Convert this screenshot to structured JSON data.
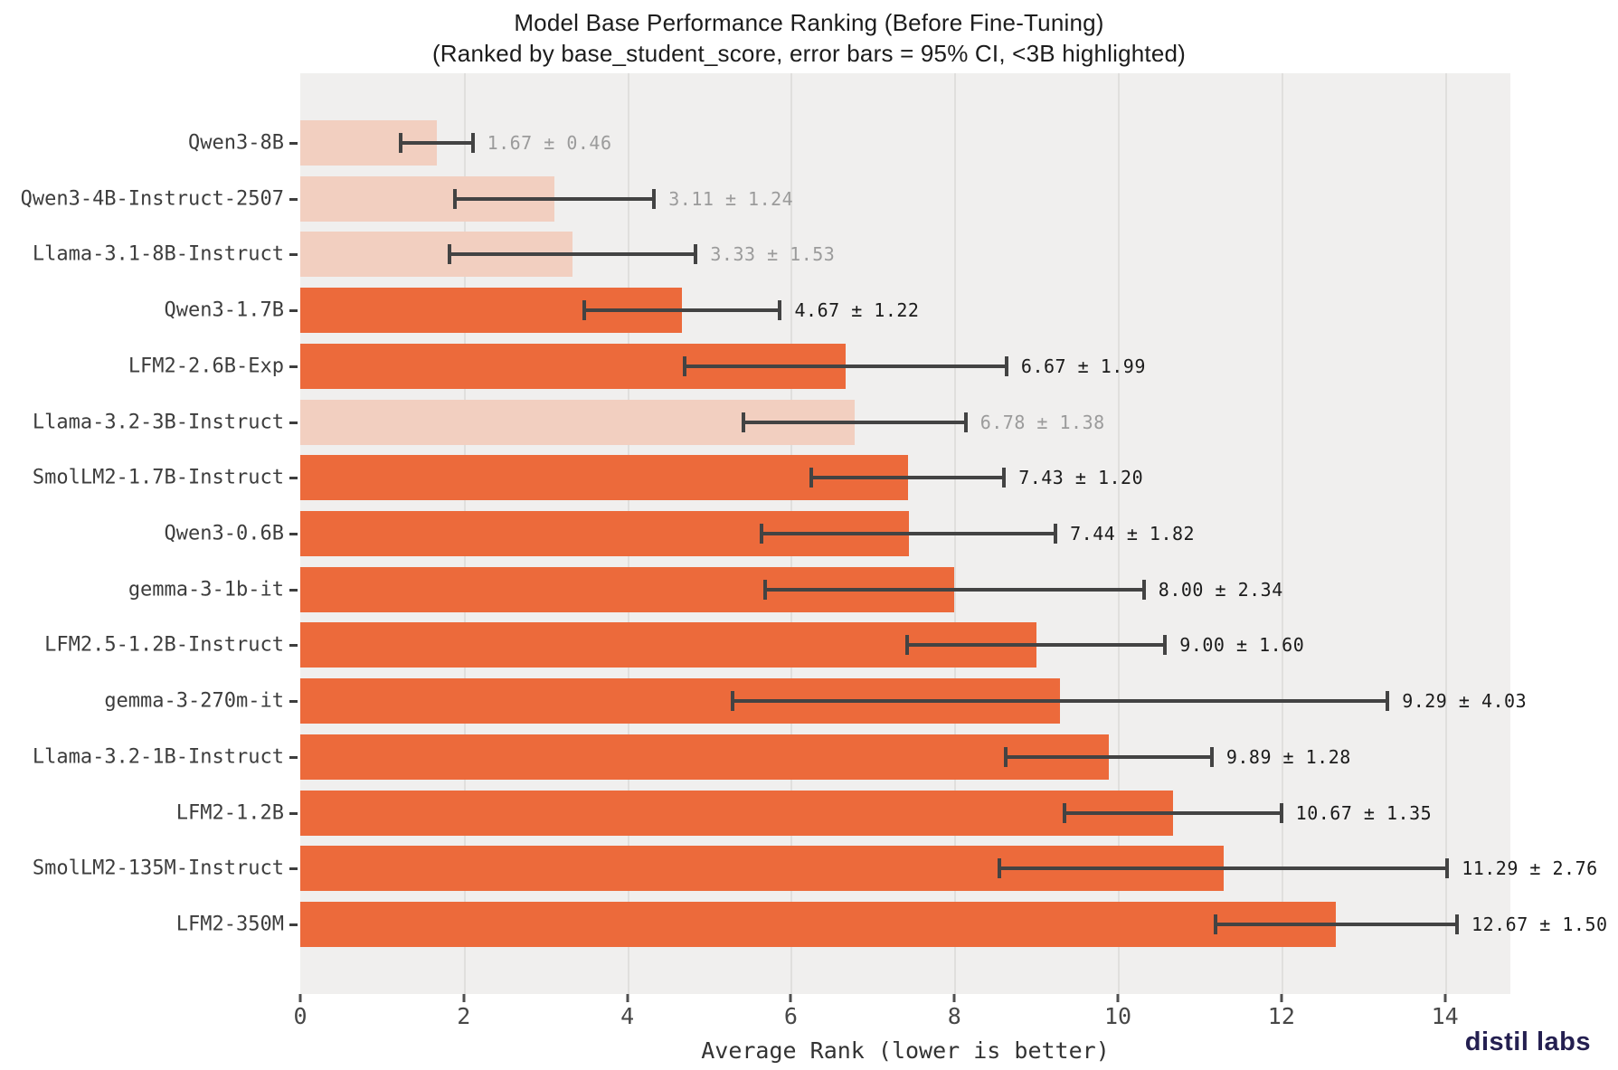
{
  "title": {
    "line1": "Model Base Performance Ranking (Before Fine-Tuning)",
    "line2": "(Ranked by base_student_score, error bars = 95% CI, <3B highlighted)"
  },
  "watermark": "distil labs",
  "colors": {
    "bar_highlight": "#ec6a3b",
    "bar_dimmed": "#f2cfc0",
    "error_bar": "#434343",
    "plot_background": "#f0efee",
    "gridline": "#e0dfdd",
    "value_label_dark": "#1b1b1b",
    "value_label_gray": "#9b9b9b",
    "logo_navy": "#241f50"
  },
  "chart_data": {
    "type": "bar",
    "orientation": "horizontal",
    "title": "Model Base Performance Ranking (Before Fine-Tuning)",
    "subtitle": "(Ranked by base_student_score, error bars = 95% CI, <3B highlighted)",
    "xlabel": "Average Rank (lower is better)",
    "xlim": [
      0,
      14.8
    ],
    "x_ticks": [
      0,
      2,
      4,
      6,
      8,
      10,
      12,
      14
    ],
    "grid": true,
    "categories": [
      "Qwen3-8B",
      "Qwen3-4B-Instruct-2507",
      "Llama-3.1-8B-Instruct",
      "Qwen3-1.7B",
      "LFM2-2.6B-Exp",
      "Llama-3.2-3B-Instruct",
      "SmolLM2-1.7B-Instruct",
      "Qwen3-0.6B",
      "gemma-3-1b-it",
      "LFM2.5-1.2B-Instruct",
      "gemma-3-270m-it",
      "Llama-3.2-1B-Instruct",
      "LFM2-1.2B",
      "SmolLM2-135M-Instruct",
      "LFM2-350M"
    ],
    "values": [
      1.67,
      3.11,
      3.33,
      4.67,
      6.67,
      6.78,
      7.43,
      7.44,
      8.0,
      9.0,
      9.29,
      9.89,
      10.67,
      11.29,
      12.67
    ],
    "ci": [
      0.46,
      1.24,
      1.53,
      1.22,
      1.99,
      1.38,
      1.2,
      1.82,
      2.34,
      1.6,
      4.03,
      1.28,
      1.35,
      2.76,
      1.5
    ],
    "highlighted": [
      false,
      false,
      false,
      true,
      true,
      false,
      true,
      true,
      true,
      true,
      true,
      true,
      true,
      true,
      true
    ],
    "value_labels": [
      "1.67 ± 0.46",
      "3.11 ± 1.24",
      "3.33 ± 1.53",
      "4.67 ± 1.22",
      "6.67 ± 1.99",
      "6.78 ± 1.38",
      "7.43 ± 1.20",
      "7.44 ± 1.82",
      "8.00 ± 2.34",
      "9.00 ± 1.60",
      "9.29 ± 4.03",
      "9.89 ± 1.28",
      "10.67 ± 1.35",
      "11.29 ± 2.76",
      "12.67 ± 1.50"
    ]
  }
}
